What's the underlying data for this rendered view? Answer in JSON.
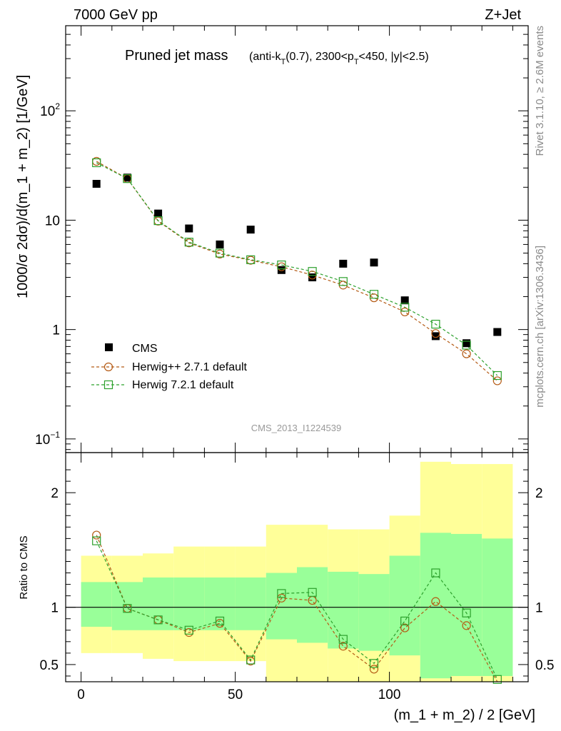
{
  "header": {
    "left": "7000 GeV pp",
    "right": "Z+Jet"
  },
  "side_labels": {
    "rivet": "Rivet 3.1.10, ≥ 2.6M events",
    "mcplots": "mcplots.cern.ch [arXiv:1306.3436]"
  },
  "colors": {
    "cms": "#000000",
    "herwigpp": "#b45a14",
    "herwig7": "#2ca02c",
    "band_yellow": "#ffff99",
    "band_green": "#99ff99"
  },
  "chart_data": [
    {
      "type": "scatter",
      "title": "Pruned jet mass",
      "subtitle_parts": [
        "(anti-k",
        "T",
        "(0.7), 2300<p",
        "T",
        "<450, |y|<2.5)"
      ],
      "analysis_label": "CMS_2013_I1224539",
      "ylabel": "1000/σ 2dσ)/d(m_1 + m_2) [1/GeV]",
      "yscale": "log",
      "ylim": [
        0.075,
        600
      ],
      "xlim": [
        -5,
        145
      ],
      "ytick_labels": [
        {
          "value": 100,
          "base": "10",
          "exp": "2"
        },
        {
          "value": 10,
          "base": "10",
          "exp": ""
        },
        {
          "value": 1,
          "base": "1",
          "exp": ""
        },
        {
          "value": 0.1,
          "base": "10",
          "exp": "−1"
        }
      ],
      "x": [
        5,
        15,
        25,
        35,
        45,
        55,
        65,
        75,
        85,
        95,
        105,
        115,
        125,
        135
      ],
      "series": [
        {
          "name": "CMS",
          "marker": "filled-square",
          "values": [
            21.5,
            24.5,
            11.5,
            8.4,
            6.0,
            8.2,
            3.5,
            3.0,
            4.0,
            4.1,
            1.85,
            0.87,
            0.75,
            0.95
          ]
        },
        {
          "name": "Herwig++ 2.7.1 default",
          "marker": "open-circle",
          "line": "dashed",
          "values": [
            34.5,
            24.0,
            9.8,
            6.2,
            4.9,
            4.3,
            3.75,
            3.15,
            2.55,
            1.95,
            1.45,
            0.92,
            0.6,
            0.34
          ]
        },
        {
          "name": "Herwig 7.2.1 default",
          "marker": "open-square",
          "line": "dashed",
          "values": [
            33.5,
            24.0,
            9.9,
            6.3,
            5.0,
            4.35,
            3.9,
            3.4,
            2.75,
            2.1,
            1.6,
            1.12,
            0.72,
            0.38
          ]
        }
      ],
      "legend_position": "lower-left"
    },
    {
      "type": "line",
      "ylabel": "Ratio to CMS",
      "xlabel": "(m_1 + m_2) / 2 [GeV]",
      "ylim": [
        0.35,
        2.35
      ],
      "xlim": [
        -5,
        145
      ],
      "xticks": [
        0,
        50,
        100
      ],
      "yticks": [
        0.5,
        1,
        2
      ],
      "reference_line": 1,
      "bins": [
        [
          0,
          10
        ],
        [
          10,
          20
        ],
        [
          20,
          30
        ],
        [
          30,
          40
        ],
        [
          40,
          50
        ],
        [
          50,
          60
        ],
        [
          60,
          70
        ],
        [
          70,
          80
        ],
        [
          80,
          90
        ],
        [
          90,
          100
        ],
        [
          100,
          110
        ],
        [
          110,
          120
        ],
        [
          120,
          130
        ],
        [
          130,
          140
        ]
      ],
      "band_yellow": [
        [
          0.6,
          1.45
        ],
        [
          0.6,
          1.45
        ],
        [
          0.55,
          1.47
        ],
        [
          0.53,
          1.53
        ],
        [
          0.53,
          1.53
        ],
        [
          0.53,
          1.53
        ],
        [
          0.35,
          1.72
        ],
        [
          0.35,
          1.72
        ],
        [
          0.35,
          1.68
        ],
        [
          0.35,
          1.68
        ],
        [
          0.35,
          1.8
        ],
        [
          0.35,
          2.27
        ],
        [
          0.35,
          2.25
        ],
        [
          0.35,
          2.25
        ]
      ],
      "band_green": [
        [
          0.83,
          1.22
        ],
        [
          0.8,
          1.22
        ],
        [
          0.8,
          1.26
        ],
        [
          0.8,
          1.26
        ],
        [
          0.8,
          1.26
        ],
        [
          0.8,
          1.26
        ],
        [
          0.72,
          1.3
        ],
        [
          0.69,
          1.35
        ],
        [
          0.64,
          1.31
        ],
        [
          0.62,
          1.29
        ],
        [
          0.58,
          1.45
        ],
        [
          0.38,
          1.65
        ],
        [
          0.4,
          1.64
        ],
        [
          0.4,
          1.6
        ]
      ],
      "series": [
        {
          "name": "Herwig++ 2.7.1 default",
          "values": [
            1.63,
            0.99,
            0.89,
            0.78,
            0.86,
            0.53,
            1.08,
            1.06,
            0.66,
            0.46,
            0.82,
            1.05,
            0.84,
            0.3
          ]
        },
        {
          "name": "Herwig 7.2.1 default",
          "values": [
            1.58,
            0.99,
            0.89,
            0.8,
            0.88,
            0.54,
            1.12,
            1.13,
            0.72,
            0.51,
            0.88,
            1.3,
            0.95,
            0.37
          ]
        }
      ]
    }
  ]
}
